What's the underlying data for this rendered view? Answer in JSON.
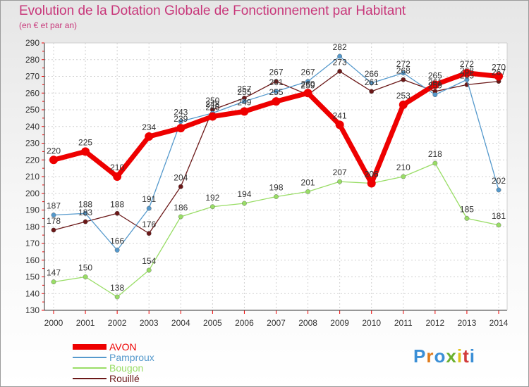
{
  "chart_data": {
    "type": "line",
    "title": "Evolution de la Dotation Globale de Fonctionnement par Habitant",
    "subtitle": "(en € et par an)",
    "xlabel": "",
    "ylabel": "",
    "ylim": [
      130,
      290
    ],
    "yticks": [
      130,
      140,
      150,
      160,
      170,
      180,
      190,
      200,
      210,
      220,
      230,
      240,
      250,
      260,
      270,
      280,
      290
    ],
    "categories": [
      "2000",
      "2001",
      "2002",
      "2003",
      "2004",
      "2005",
      "2006",
      "2007",
      "2008",
      "2009",
      "2010",
      "2011",
      "2012",
      "2013",
      "2014"
    ],
    "series": [
      {
        "name": "Rouillé",
        "color": "#6b1818",
        "values": [
          178,
          183,
          188,
          176,
          204,
          250,
          257,
          267,
          259,
          273,
          261,
          268,
          261,
          265,
          267
        ]
      },
      {
        "name": "Bougon",
        "color": "#99dd66",
        "values": [
          147,
          150,
          138,
          154,
          186,
          192,
          194,
          198,
          201,
          207,
          206,
          210,
          218,
          185,
          181
        ]
      },
      {
        "name": "Pamproux",
        "color": "#5599cc",
        "values": [
          187,
          188,
          166,
          191,
          243,
          248,
          255,
          261,
          267,
          282,
          266,
          272,
          259,
          268,
          202
        ]
      },
      {
        "name": "AVON",
        "color": "#ee0000",
        "values": [
          220,
          225,
          210,
          234,
          239,
          246,
          249,
          255,
          260,
          241,
          206,
          253,
          265,
          272,
          270
        ]
      }
    ],
    "legend_position": "bottom-left",
    "grid": true
  },
  "logo": {
    "text": "Proxiti",
    "colors": [
      "#3b8fd6",
      "#e07b1c",
      "#3b8fd6",
      "#6bb02e",
      "#e0c21c",
      "#d23b3b",
      "#3b8fd6"
    ]
  }
}
